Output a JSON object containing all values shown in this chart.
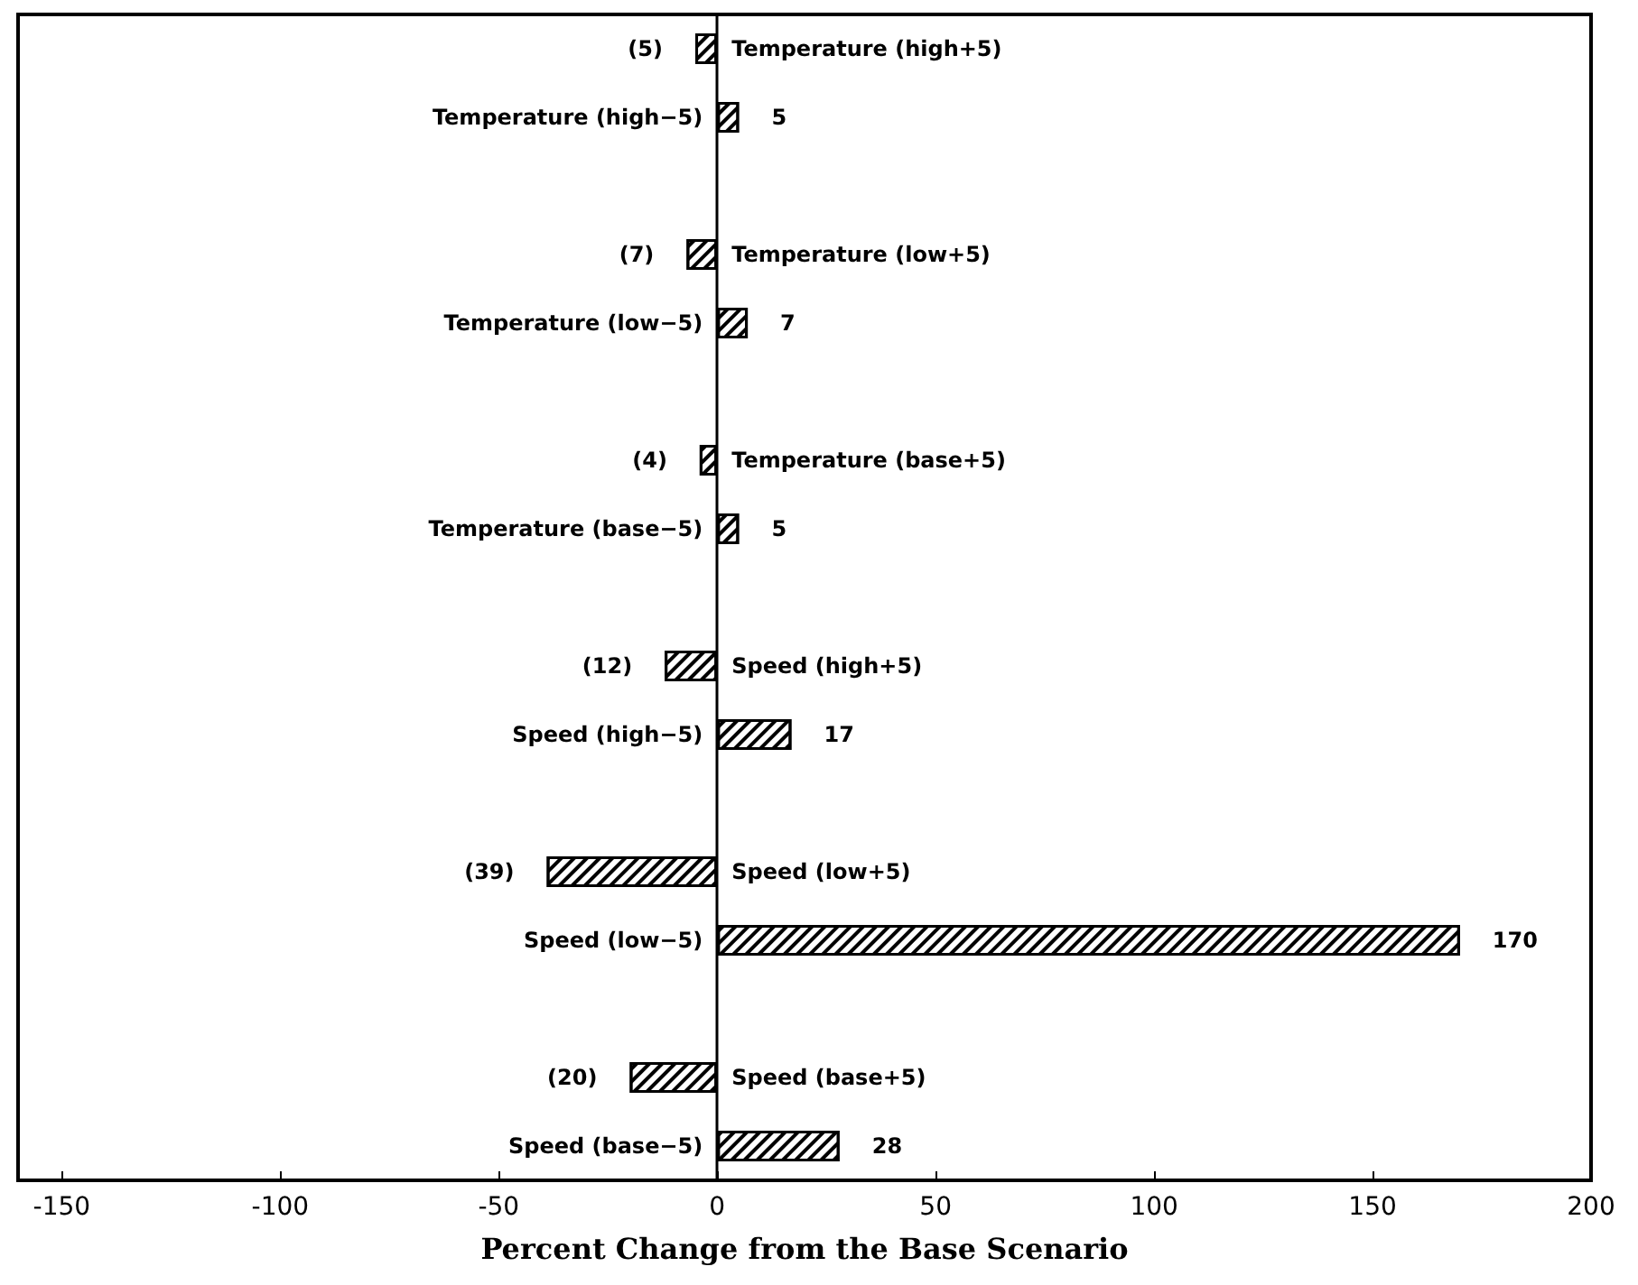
{
  "chart_data": {
    "type": "bar",
    "orientation": "horizontal",
    "xlabel": "Percent Change from the Base Scenario",
    "categories": [
      "Temperature (high+5)",
      "Temperature (high−5)",
      "Temperature (low+5)",
      "Temperature (low−5)",
      "Temperature (base+5)",
      "Temperature (base−5)",
      "Speed (high+5)",
      "Speed (high−5)",
      "Speed (low+5)",
      "Speed (low−5)",
      "Speed (base+5)",
      "Speed (base−5)"
    ],
    "values": [
      -5,
      5,
      -7,
      7,
      -4,
      5,
      -12,
      17,
      -39,
      170,
      -20,
      28
    ],
    "value_labels": [
      "(5)",
      "5",
      "(7)",
      "7",
      "(4)",
      "5",
      "(12)",
      "17",
      "(39)",
      "170",
      "(20)",
      "28"
    ],
    "color": "#000000",
    "xlim": [
      -160,
      200
    ],
    "xticks": [
      -150,
      -100,
      -50,
      0,
      50,
      100,
      150,
      200
    ]
  }
}
